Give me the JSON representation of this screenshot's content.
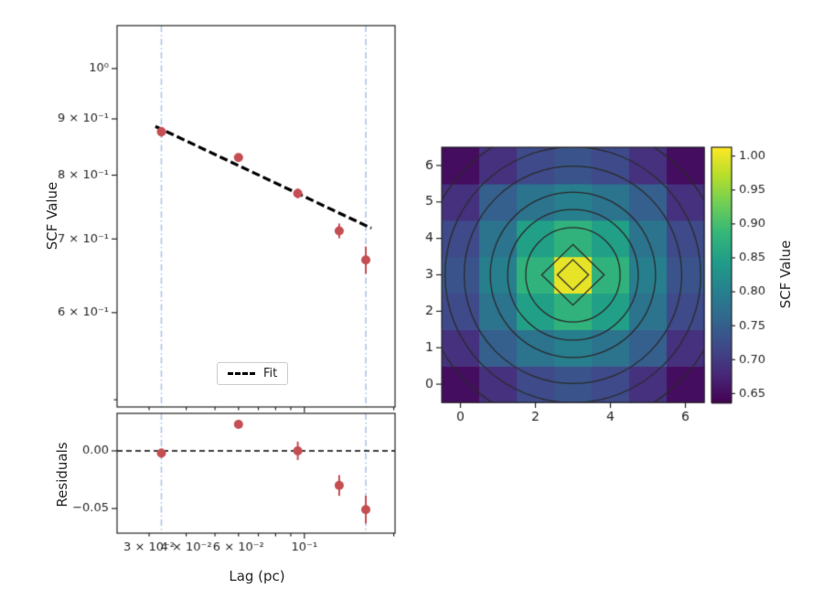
{
  "figure": {
    "background": "#ffffff",
    "text_color": "#262626",
    "axes_color": "#262626"
  },
  "chart_data": [
    {
      "type": "scatter",
      "name": "scf-vs-lag",
      "ylabel": "SCF Value",
      "xscale": "log",
      "yscale": "log",
      "xlim": [
        0.0234,
        0.202
      ],
      "ylim": [
        0.4925,
        1.094
      ],
      "x": [
        0.033,
        0.06,
        0.095,
        0.131,
        0.161
      ],
      "y": [
        0.876,
        0.83,
        0.77,
        0.712,
        0.67
      ],
      "yerr": [
        0.009,
        0.006,
        0.008,
        0.011,
        0.019
      ],
      "fit_line": {
        "x": [
          0.0315,
          0.168
        ],
        "y": [
          0.886,
          0.716
        ],
        "label": "Fit"
      },
      "vlines": [
        0.033,
        0.161
      ],
      "yticks": [
        1.0,
        0.9,
        0.8,
        0.7,
        0.6
      ],
      "ytick_labels": [
        "10⁰",
        "9 × 10⁻¹",
        "8 × 10⁻¹",
        "7 × 10⁻¹",
        "6 × 10⁻¹"
      ],
      "minor_yticks": [
        0.5
      ],
      "xticks_all": [
        0.03,
        0.04,
        0.05,
        0.06,
        0.07,
        0.08,
        0.09,
        0.1,
        0.2
      ],
      "xticks_major": [
        0.1
      ],
      "point_color": "#c44e52",
      "fit_color": "#000000",
      "vline_color": "#aec7e8",
      "legend_position": "lower center"
    },
    {
      "type": "scatter",
      "name": "residuals",
      "ylabel": "Residuals",
      "xlabel": "Lag (pc)",
      "xscale": "log",
      "xlim": [
        0.0234,
        0.202
      ],
      "ylim": [
        -0.0714,
        0.0325
      ],
      "x": [
        0.033,
        0.06,
        0.095,
        0.131,
        0.161
      ],
      "y": [
        -0.002,
        0.023,
        0.0,
        -0.03,
        -0.051
      ],
      "yerr": [
        0.004,
        0.003,
        0.008,
        0.009,
        0.012
      ],
      "hline": 0,
      "vlines": [
        0.033,
        0.161
      ],
      "yticks": [
        0.0,
        -0.05
      ],
      "ytick_labels": [
        "0.00",
        "−0.05"
      ],
      "xticks": [
        0.03,
        0.04,
        0.06,
        0.1
      ],
      "xtick_labels": [
        "3 × 10⁻²",
        "4 × 10⁻²",
        "6 × 10⁻²",
        "10⁻¹"
      ],
      "point_color": "#c44e52",
      "vline_color": "#aec7e8",
      "hline_color": "#000000"
    },
    {
      "type": "heatmap",
      "name": "scf-2d-map",
      "colormap": "viridis",
      "xticks": [
        0,
        2,
        4,
        6
      ],
      "xtick_labels": [
        "0",
        "2",
        "4",
        "6"
      ],
      "yticks": [
        0,
        1,
        2,
        3,
        4,
        5,
        6
      ],
      "ytick_labels": [
        "0",
        "1",
        "2",
        "3",
        "4",
        "5",
        "6"
      ],
      "rows_order": "bottom-to-top",
      "values": [
        [
          0.65,
          0.69,
          0.72,
          0.735,
          0.72,
          0.69,
          0.65
        ],
        [
          0.69,
          0.75,
          0.78,
          0.8,
          0.78,
          0.75,
          0.69
        ],
        [
          0.72,
          0.78,
          0.85,
          0.88,
          0.85,
          0.78,
          0.72
        ],
        [
          0.735,
          0.8,
          0.88,
          1.0,
          0.88,
          0.8,
          0.735
        ],
        [
          0.72,
          0.78,
          0.85,
          0.88,
          0.85,
          0.78,
          0.72
        ],
        [
          0.69,
          0.75,
          0.78,
          0.8,
          0.78,
          0.75,
          0.69
        ],
        [
          0.65,
          0.69,
          0.72,
          0.735,
          0.72,
          0.69,
          0.65
        ]
      ],
      "contour_levels": [
        0.66,
        0.7,
        0.74,
        0.78,
        0.82,
        0.86,
        0.9,
        0.95
      ],
      "contour_color": "#2b2b2b",
      "colorbar": {
        "label": "SCF Value",
        "vmin": 0.637,
        "vmax": 1.013,
        "ticks": [
          1.0,
          0.95,
          0.9,
          0.85,
          0.8,
          0.75,
          0.7,
          0.65
        ],
        "tick_labels": [
          "1.00",
          "0.95",
          "0.90",
          "0.85",
          "0.80",
          "0.75",
          "0.70",
          "0.65"
        ]
      }
    }
  ]
}
